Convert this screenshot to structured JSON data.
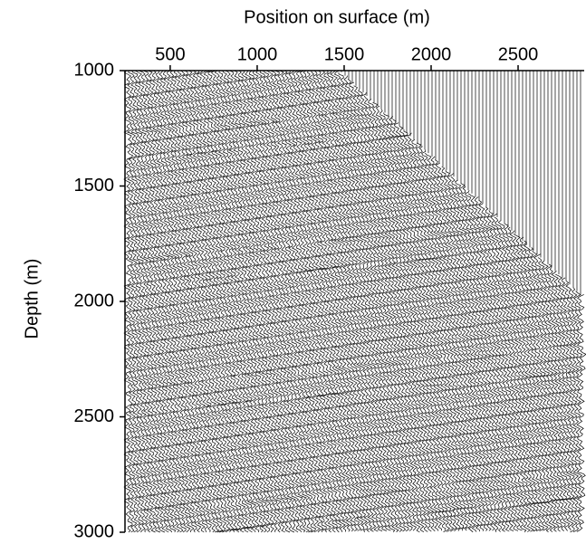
{
  "chart_data": {
    "type": "seismic-section",
    "x_label": "Position on surface (m)",
    "y_label": "Depth (m)",
    "xlim": [
      240,
      2880
    ],
    "xticks": [
      500,
      1000,
      1500,
      2000,
      2500
    ],
    "ylim": [
      1000,
      3000
    ],
    "yticks": [
      1000,
      1500,
      2000,
      2500,
      3000
    ],
    "y_inverted": true,
    "x_axis_position": "top",
    "color": "#000000"
  }
}
